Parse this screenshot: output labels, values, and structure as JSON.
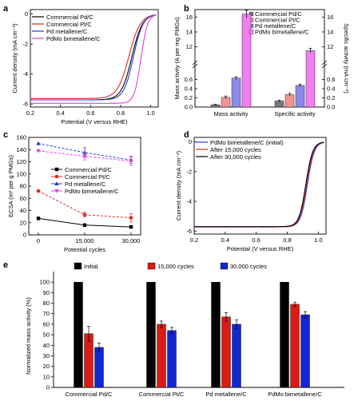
{
  "panel_labels": [
    "a",
    "b",
    "c",
    "d",
    "e"
  ],
  "colors": {
    "pd_c": "#000000",
    "pt_c": "#e02a1f",
    "pd_metallene": "#1f3fcf",
    "pdmo": "#e23de8",
    "b_pdc": "#7a7a7a",
    "b_ptc": "#f39393",
    "b_pdm": "#8a8ae8",
    "b_pdmo": "#f080f0",
    "e_init": "#000000",
    "e_15k": "#d81c16",
    "e_30k": "#1327cf"
  },
  "chart_data": [
    {
      "panel": "a",
      "type": "line",
      "xlabel": "Potential (V versus RHE)",
      "ylabel": "Current density (mA cm⁻²)",
      "xlim": [
        0.2,
        1.05
      ],
      "ylim": [
        -6.2,
        0.3
      ],
      "xticks": [
        "0.2",
        "0.4",
        "0.6",
        "0.8",
        "1.0"
      ],
      "yticks": [
        "0",
        "-2",
        "-4",
        "-6"
      ],
      "series": [
        {
          "name": "Commercial Pd/C",
          "color": "pd_c",
          "limit": -5.72,
          "half": 0.875,
          "width": 0.035
        },
        {
          "name": "Commercial Pt/C",
          "color": "pt_c",
          "limit": -5.63,
          "half": 0.855,
          "width": 0.038
        },
        {
          "name": "Pd metallene/C",
          "color": "pd_metallene",
          "limit": -5.72,
          "half": 0.885,
          "width": 0.032
        },
        {
          "name": "PdMo bimetallene/C",
          "color": "pdmo",
          "limit": -5.95,
          "half": 0.935,
          "width": 0.022
        }
      ]
    },
    {
      "panel": "b",
      "type": "bar",
      "categories": [
        "Mass activity",
        "Specific activity"
      ],
      "ylabel_left": "Mass activity (A per mg PMGs)",
      "ylabel_right": "Specific activity (mA cm⁻²)",
      "yticks_low": [
        "0.0",
        "0.2",
        "0.4",
        "0.6"
      ],
      "yticks_high": [
        "12",
        "14",
        "16"
      ],
      "series": [
        {
          "name": "Commercial Pd/C",
          "color": "b_pdc",
          "values": [
            0.05,
            0.13
          ],
          "err": [
            0.01,
            0.02
          ]
        },
        {
          "name": "Commercial Pt/C",
          "color": "b_ptc",
          "values": [
            0.21,
            0.27
          ],
          "err": [
            0.03,
            0.03
          ]
        },
        {
          "name": "Pd metallene/C",
          "color": "b_pdm",
          "values": [
            0.63,
            0.47
          ],
          "err": [
            0.03,
            0.03
          ]
        },
        {
          "name": "PdMo bimetallene/C",
          "color": "b_pdmo",
          "values": [
            16.4,
            11.5
          ],
          "err": [
            0.5,
            0.3
          ]
        }
      ]
    },
    {
      "panel": "c",
      "type": "line",
      "xlabel": "Potential cycles",
      "ylabel": "ECSA (m² per g PMGs)",
      "x": [
        0,
        15000,
        30000
      ],
      "xticks": [
        "0",
        "15,000",
        "30,000"
      ],
      "yticks": [
        "0",
        "20",
        "40",
        "60",
        "80",
        "100",
        "120",
        "140",
        "160"
      ],
      "ylim": [
        0,
        160
      ],
      "series": [
        {
          "name": "Commercial Pd/C",
          "color": "pd_c",
          "marker": "square",
          "values": [
            27,
            16,
            13
          ],
          "err": [
            0,
            2,
            2
          ]
        },
        {
          "name": "Commercial Pt/C",
          "color": "pt_c",
          "marker": "circle",
          "values": [
            72,
            33,
            28
          ],
          "err": [
            0,
            4,
            7
          ]
        },
        {
          "name": "Pd metallene/C",
          "color": "pd_metallene",
          "marker": "triangle",
          "values": [
            150,
            135,
            123
          ],
          "err": [
            0,
            8,
            6
          ]
        },
        {
          "name": "PdMo bimetallene/C",
          "color": "pdmo",
          "marker": "triangle-down",
          "values": [
            138,
            129,
            121
          ],
          "err": [
            0,
            6,
            7
          ]
        }
      ]
    },
    {
      "panel": "d",
      "type": "line",
      "xlabel": "Potential (V versus RHE)",
      "ylabel": "Current density (mA cm⁻²)",
      "xlim": [
        0.2,
        1.05
      ],
      "ylim": [
        -6.2,
        0.3
      ],
      "xticks": [
        "0.2",
        "0.4",
        "0.6",
        "0.8",
        "1.0"
      ],
      "yticks": [
        "0",
        "-2",
        "-4",
        "-6"
      ],
      "series": [
        {
          "name": "PdMo bimetallene/C (initial)",
          "color": "pd_metallene",
          "limit": -5.72,
          "half": 0.93,
          "width": 0.022
        },
        {
          "name": "After 15,000 cycles",
          "color": "pt_c",
          "limit": -5.72,
          "half": 0.925,
          "width": 0.022
        },
        {
          "name": "After 30,000 cycles",
          "color": "pd_c",
          "limit": -5.7,
          "half": 0.92,
          "width": 0.022
        }
      ]
    },
    {
      "panel": "e",
      "type": "bar",
      "ylabel": "Normalized mass activity (%)",
      "categories": [
        "Commercial Pd/C",
        "Commercial Pt/C",
        "Pd metallene/C",
        "PdMo bimetallene/C"
      ],
      "yticks": [
        "0",
        "10",
        "20",
        "30",
        "40",
        "50",
        "60",
        "70",
        "80",
        "90",
        "100"
      ],
      "ylim": [
        0,
        100
      ],
      "series": [
        {
          "name": "Initial",
          "color": "e_init",
          "values": [
            100,
            100,
            100,
            100
          ],
          "err": [
            0,
            0,
            0,
            0
          ]
        },
        {
          "name": "15,000 cycles",
          "color": "e_15k",
          "values": [
            51,
            60,
            67,
            79
          ],
          "err": [
            7,
            3,
            4,
            2
          ]
        },
        {
          "name": "30,000 cycles",
          "color": "e_30k",
          "values": [
            38,
            54,
            60,
            69
          ],
          "err": [
            4,
            3,
            4,
            3
          ]
        }
      ]
    }
  ]
}
